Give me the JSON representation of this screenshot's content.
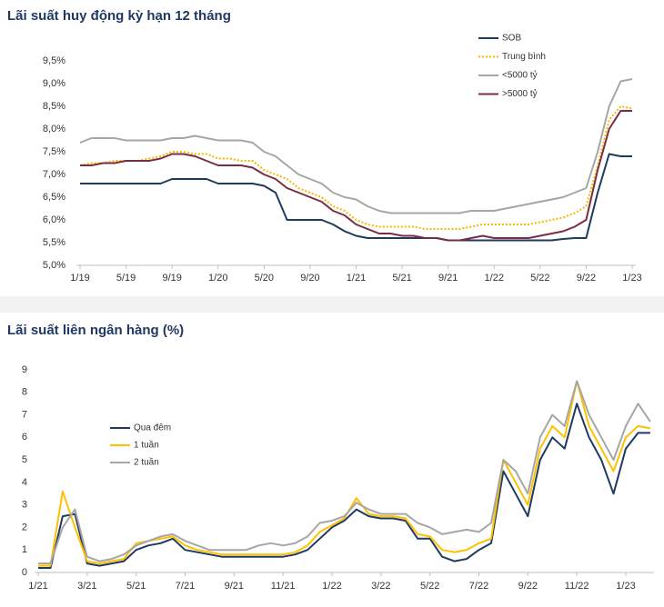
{
  "chart_data": [
    {
      "type": "line",
      "title": "Lãi suất huy động kỳ hạn 12 tháng",
      "categories": [
        "1/19",
        null,
        null,
        null,
        "5/19",
        null,
        null,
        null,
        "9/19",
        null,
        null,
        null,
        "1/20",
        null,
        null,
        null,
        "5/20",
        null,
        null,
        null,
        "9/20",
        null,
        null,
        null,
        "1/21",
        null,
        null,
        null,
        "5/21",
        null,
        null,
        null,
        "9/21",
        null,
        null,
        null,
        "1/22",
        null,
        null,
        null,
        "5/22",
        null,
        null,
        null,
        "9/22",
        null,
        null,
        null,
        "1/23"
      ],
      "ylim": [
        5,
        9.5
      ],
      "yticks": [
        {
          "value": 5,
          "label": "5,0%"
        },
        {
          "value": 5.5,
          "label": "5,5%"
        },
        {
          "value": 6,
          "label": "6,0%"
        },
        {
          "value": 6.5,
          "label": "6,5%"
        },
        {
          "value": 7,
          "label": "7,0%"
        },
        {
          "value": 7.5,
          "label": "7,5%"
        },
        {
          "value": 8,
          "label": "8,0%"
        },
        {
          "value": 8.5,
          "label": "8,5%"
        },
        {
          "value": 9,
          "label": "9,0%"
        },
        {
          "value": 9.5,
          "label": "9,5%"
        }
      ],
      "legend": "upper right",
      "series": [
        {
          "name": "SOB",
          "color": "#1f3a5f",
          "values": [
            6.8,
            6.8,
            6.8,
            6.8,
            6.8,
            6.8,
            6.8,
            6.8,
            6.9,
            6.9,
            6.9,
            6.9,
            6.8,
            6.8,
            6.8,
            6.8,
            6.75,
            6.6,
            6.0,
            6.0,
            6.0,
            6.0,
            5.9,
            5.75,
            5.65,
            5.6,
            5.6,
            5.6,
            5.6,
            5.6,
            5.6,
            5.6,
            5.55,
            5.55,
            5.55,
            5.55,
            5.55,
            5.55,
            5.55,
            5.55,
            5.55,
            5.55,
            5.58,
            5.6,
            5.6,
            6.6,
            7.45,
            7.4,
            7.4
          ]
        },
        {
          "name": "Trung bình",
          "color": "#f5b800",
          "dash": "dotted",
          "values": [
            7.2,
            7.25,
            7.25,
            7.3,
            7.3,
            7.3,
            7.35,
            7.4,
            7.5,
            7.5,
            7.45,
            7.45,
            7.35,
            7.35,
            7.3,
            7.3,
            7.1,
            7.0,
            6.9,
            6.7,
            6.6,
            6.5,
            6.3,
            6.2,
            6.0,
            5.9,
            5.85,
            5.85,
            5.85,
            5.85,
            5.8,
            5.8,
            5.8,
            5.8,
            5.85,
            5.9,
            5.9,
            5.9,
            5.9,
            5.9,
            5.95,
            6.0,
            6.05,
            6.15,
            6.3,
            7.2,
            8.2,
            8.5,
            8.45
          ]
        },
        {
          "name": "<5000 tỷ",
          "color": "#a6a6a6",
          "values": [
            7.7,
            7.8,
            7.8,
            7.8,
            7.75,
            7.75,
            7.75,
            7.75,
            7.8,
            7.8,
            7.85,
            7.8,
            7.75,
            7.75,
            7.75,
            7.7,
            7.5,
            7.4,
            7.2,
            7.0,
            6.9,
            6.8,
            6.6,
            6.5,
            6.45,
            6.3,
            6.2,
            6.15,
            6.15,
            6.15,
            6.15,
            6.15,
            6.15,
            6.15,
            6.2,
            6.2,
            6.2,
            6.25,
            6.3,
            6.35,
            6.4,
            6.45,
            6.5,
            6.6,
            6.7,
            7.5,
            8.5,
            9.05,
            9.1
          ]
        },
        {
          "name": ">5000 tỷ",
          "color": "#7b2c45",
          "values": [
            7.2,
            7.2,
            7.25,
            7.25,
            7.3,
            7.3,
            7.3,
            7.35,
            7.45,
            7.45,
            7.4,
            7.3,
            7.2,
            7.2,
            7.2,
            7.15,
            7.0,
            6.9,
            6.7,
            6.6,
            6.5,
            6.4,
            6.2,
            6.1,
            5.9,
            5.8,
            5.7,
            5.7,
            5.65,
            5.65,
            5.6,
            5.6,
            5.55,
            5.55,
            5.6,
            5.65,
            5.6,
            5.6,
            5.6,
            5.6,
            5.65,
            5.7,
            5.75,
            5.85,
            6.0,
            7.1,
            8.0,
            8.4,
            8.4
          ]
        }
      ]
    },
    {
      "type": "line",
      "title": "Lãi suất liên ngân hàng (%)",
      "categories": [
        "1/21",
        null,
        null,
        null,
        "3/21",
        null,
        null,
        null,
        "5/21",
        null,
        null,
        null,
        "7/21",
        null,
        null,
        null,
        "9/21",
        null,
        null,
        null,
        "11/21",
        null,
        null,
        null,
        "1/22",
        null,
        null,
        null,
        "3/22",
        null,
        null,
        null,
        "5/22",
        null,
        null,
        null,
        "7/22",
        null,
        null,
        null,
        "9/22",
        null,
        null,
        null,
        "11/22",
        null,
        null,
        null,
        "1/23",
        null,
        null
      ],
      "ylim": [
        0,
        9.5
      ],
      "yticks": [
        0,
        1,
        2,
        3,
        4,
        5,
        6,
        7,
        8,
        9
      ],
      "legend": "center left",
      "series": [
        {
          "name": "Qua đêm",
          "color": "#1f3a5f",
          "values": [
            0.2,
            0.2,
            2.5,
            2.6,
            0.4,
            0.3,
            0.4,
            0.5,
            1.0,
            1.2,
            1.3,
            1.5,
            1.0,
            0.9,
            0.8,
            0.7,
            0.7,
            0.7,
            0.7,
            0.7,
            0.7,
            0.8,
            1.0,
            1.5,
            2.0,
            2.3,
            2.8,
            2.5,
            2.4,
            2.4,
            2.3,
            1.5,
            1.5,
            0.7,
            0.5,
            0.6,
            1.0,
            1.3,
            4.5,
            3.5,
            2.5,
            5.0,
            6.0,
            5.5,
            7.5,
            6.0,
            5.0,
            3.5,
            5.5,
            6.2,
            6.2
          ]
        },
        {
          "name": "1 tuần",
          "color": "#ffc000",
          "values": [
            0.3,
            0.3,
            3.6,
            2.0,
            0.5,
            0.4,
            0.5,
            0.6,
            1.3,
            1.4,
            1.5,
            1.6,
            1.2,
            1.0,
            0.9,
            0.8,
            0.8,
            0.8,
            0.8,
            0.8,
            0.8,
            0.9,
            1.2,
            1.8,
            2.1,
            2.4,
            3.3,
            2.6,
            2.5,
            2.5,
            2.4,
            1.7,
            1.6,
            1.0,
            0.9,
            1.0,
            1.3,
            1.5,
            5.0,
            4.0,
            3.0,
            5.5,
            6.5,
            6.0,
            8.5,
            6.5,
            5.5,
            4.5,
            6.0,
            6.5,
            6.4
          ]
        },
        {
          "name": "2 tuần",
          "color": "#a6a6a6",
          "values": [
            0.4,
            0.4,
            2.0,
            2.8,
            0.7,
            0.5,
            0.6,
            0.8,
            1.2,
            1.4,
            1.6,
            1.7,
            1.4,
            1.2,
            1.0,
            1.0,
            1.0,
            1.0,
            1.2,
            1.3,
            1.2,
            1.3,
            1.6,
            2.2,
            2.3,
            2.5,
            3.1,
            2.8,
            2.6,
            2.6,
            2.6,
            2.2,
            2.0,
            1.7,
            1.8,
            1.9,
            1.8,
            2.2,
            5.0,
            4.5,
            3.5,
            6.0,
            7.0,
            6.5,
            8.5,
            7.0,
            6.0,
            5.0,
            6.5,
            7.5,
            6.7
          ]
        }
      ]
    }
  ]
}
